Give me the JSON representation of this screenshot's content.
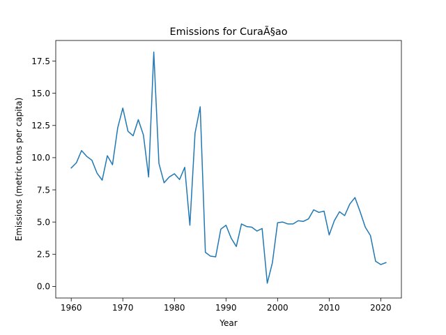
{
  "chart_data": {
    "type": "line",
    "title": "Emissions for CuraÃ§ao",
    "xlabel": "Year",
    "ylabel": "Emissions (metric tons per capita)",
    "xlim": [
      1957,
      2024
    ],
    "ylim": [
      -0.9,
      19.1
    ],
    "x_ticks": [
      1960,
      1970,
      1980,
      1990,
      2000,
      2010,
      2020
    ],
    "y_ticks": [
      0.0,
      2.5,
      5.0,
      7.5,
      10.0,
      12.5,
      15.0,
      17.5
    ],
    "x_tick_labels": [
      "1960",
      "1970",
      "1980",
      "1990",
      "2000",
      "2010",
      "2020"
    ],
    "y_tick_labels": [
      "0.0",
      "2.5",
      "5.0",
      "7.5",
      "10.0",
      "12.5",
      "15.0",
      "17.5"
    ],
    "grid": false,
    "legend": false,
    "series": [
      {
        "color": "#1f77b4",
        "x": [
          1960,
          1961,
          1962,
          1963,
          1964,
          1965,
          1966,
          1967,
          1968,
          1969,
          1970,
          1971,
          1972,
          1973,
          1974,
          1975,
          1976,
          1977,
          1978,
          1979,
          1980,
          1981,
          1982,
          1983,
          1984,
          1985,
          1986,
          1987,
          1988,
          1989,
          1990,
          1991,
          1992,
          1993,
          1994,
          1995,
          1996,
          1997,
          1998,
          1999,
          2000,
          2001,
          2002,
          2003,
          2004,
          2005,
          2006,
          2007,
          2008,
          2009,
          2010,
          2011,
          2012,
          2013,
          2014,
          2015,
          2016,
          2017,
          2018,
          2019,
          2020,
          2021
        ],
        "values": [
          9.2,
          9.6,
          10.55,
          10.1,
          9.8,
          8.8,
          8.25,
          10.15,
          9.45,
          12.3,
          13.85,
          12.05,
          11.7,
          12.95,
          11.75,
          8.5,
          18.2,
          9.55,
          8.05,
          8.5,
          8.75,
          8.3,
          9.25,
          4.75,
          11.9,
          13.95,
          2.65,
          2.35,
          2.3,
          4.45,
          4.75,
          3.75,
          3.1,
          4.85,
          4.65,
          4.6,
          4.3,
          4.5,
          0.25,
          1.85,
          4.95,
          5.0,
          4.85,
          4.85,
          5.1,
          5.05,
          5.25,
          5.95,
          5.75,
          5.85,
          4.0,
          5.1,
          5.8,
          5.5,
          6.4,
          6.9,
          5.8,
          4.6,
          3.95,
          1.95,
          1.7,
          1.85
        ]
      }
    ]
  }
}
